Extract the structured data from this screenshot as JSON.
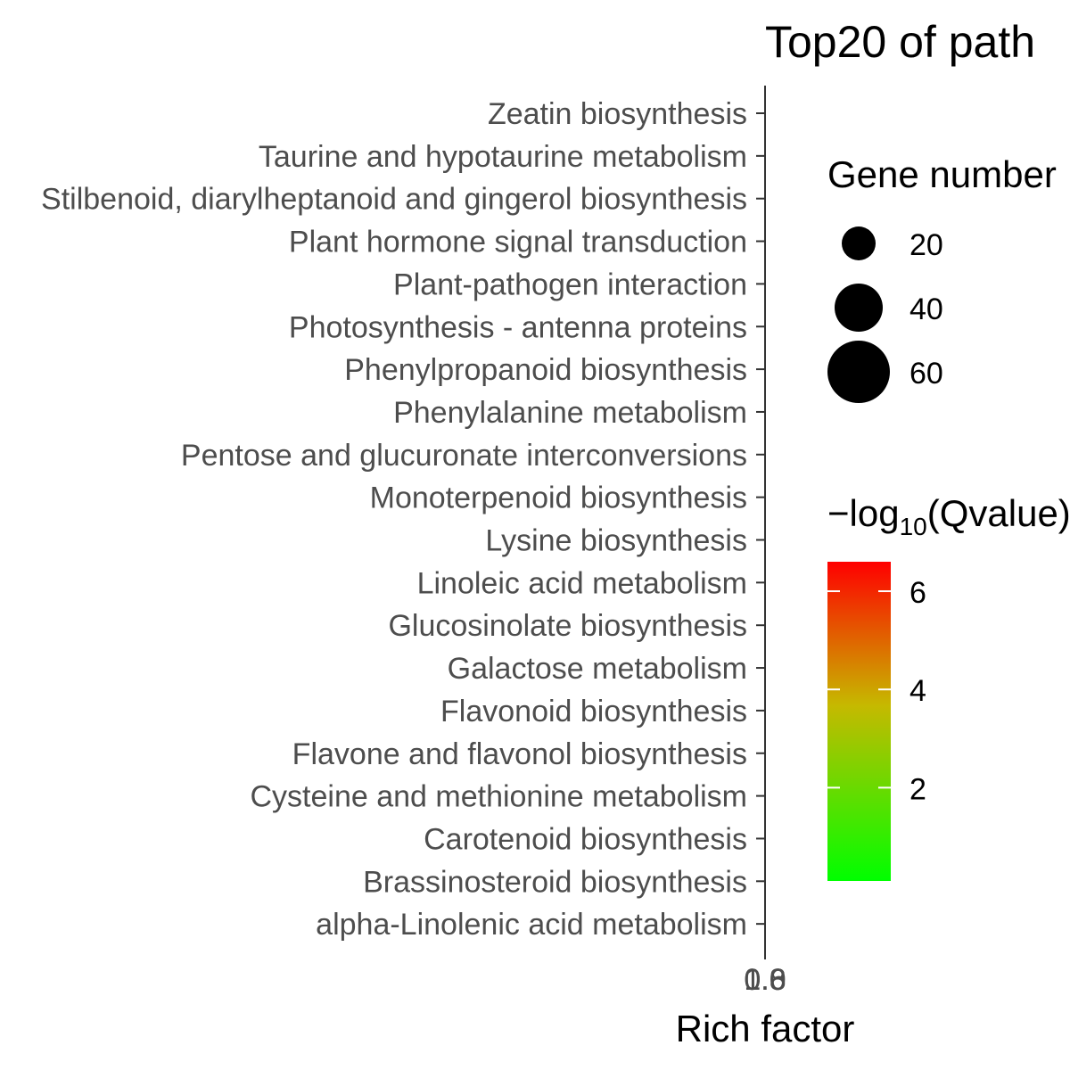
{
  "chart_data": {
    "type": "scatter",
    "title": "Top20 of path",
    "xlabel": "Rich factor",
    "ylabel": "",
    "categories": [
      "Zeatin biosynthesis",
      "Taurine and hypotaurine metabolism",
      "Stilbenoid, diarylheptanoid and gingerol biosynthesis",
      "Plant hormone signal transduction",
      "Plant-pathogen interaction",
      "Photosynthesis - antenna proteins",
      "Phenylpropanoid biosynthesis",
      "Phenylalanine metabolism",
      "Pentose and glucuronate interconversions",
      "Monoterpenoid biosynthesis",
      "Lysine biosynthesis",
      "Linoleic acid metabolism",
      "Glucosinolate biosynthesis",
      "Galactose metabolism",
      "Flavonoid biosynthesis",
      "Flavone and flavonol biosynthesis",
      "Cysteine and methionine metabolism",
      "Carotenoid biosynthesis",
      "Brassinosteroid biosynthesis",
      "alpha-Linolenic acid metabolism"
    ],
    "x_tick_labels": [
      "0.6",
      "0.8",
      "1.0"
    ],
    "grid": false,
    "legend": {
      "placement": "right",
      "size": {
        "title": "Gene number",
        "items": [
          {
            "label": "20",
            "value": 20
          },
          {
            "label": "40",
            "value": 40
          },
          {
            "label": "60",
            "value": 60
          }
        ]
      },
      "color": {
        "title_prefix": "−log",
        "title_sub": "10",
        "title_main": "(Qvalue)",
        "ticks": [
          {
            "label": "2",
            "value": 2
          },
          {
            "label": "4",
            "value": 4
          },
          {
            "label": "6",
            "value": 6
          }
        ],
        "range": [
          0.1,
          6.6
        ],
        "low_color": "#00ff00",
        "mid_color": "#c6b900",
        "high_color": "#ff0000"
      }
    }
  },
  "colors": {
    "text": "#000000",
    "tick_text": "#4d4d4d",
    "axis": "#333333",
    "point": "#000000"
  }
}
